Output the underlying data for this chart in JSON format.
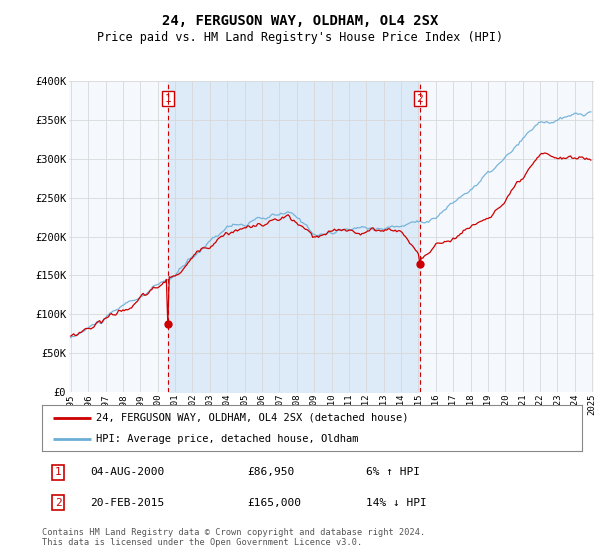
{
  "title": "24, FERGUSON WAY, OLDHAM, OL4 2SX",
  "subtitle": "Price paid vs. HM Land Registry's House Price Index (HPI)",
  "ylim": [
    0,
    400000
  ],
  "yticks": [
    0,
    50000,
    100000,
    150000,
    200000,
    250000,
    300000,
    350000,
    400000
  ],
  "ytick_labels": [
    "£0",
    "£50K",
    "£100K",
    "£150K",
    "£200K",
    "£250K",
    "£300K",
    "£350K",
    "£400K"
  ],
  "x_start_year": 1995,
  "x_end_year": 2025,
  "sale1_year": 2000.583,
  "sale1_value": 86950,
  "sale1_label": "1",
  "sale1_date": "04-AUG-2000",
  "sale1_price": "£86,950",
  "sale1_hpi": "6% ↑ HPI",
  "sale2_year": 2015.083,
  "sale2_value": 165000,
  "sale2_label": "2",
  "sale2_date": "20-FEB-2015",
  "sale2_price": "£165,000",
  "sale2_hpi": "14% ↓ HPI",
  "hpi_color": "#6baed6",
  "sale_color": "#cc0000",
  "vline_color": "#cc0000",
  "fill_color": "#ddeaf8",
  "background_color": "#ffffff",
  "plot_bg": "#f5f8fd",
  "grid_color": "#d8d8d8",
  "legend_label_sale": "24, FERGUSON WAY, OLDHAM, OL4 2SX (detached house)",
  "legend_label_hpi": "HPI: Average price, detached house, Oldham",
  "footer": "Contains HM Land Registry data © Crown copyright and database right 2024.\nThis data is licensed under the Open Government Licence v3.0."
}
